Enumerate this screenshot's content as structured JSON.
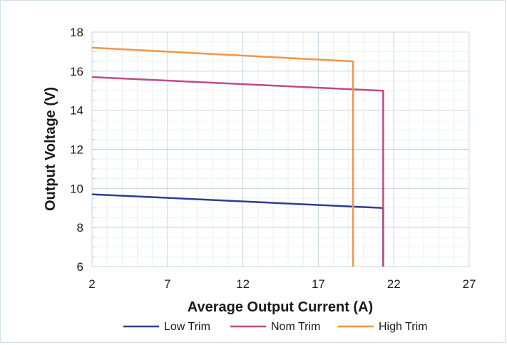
{
  "chart_data": {
    "type": "line",
    "title": "",
    "xlabel": "Average Output Current (A)",
    "ylabel": "Output Voltage (V)",
    "xlim": [
      2,
      27
    ],
    "ylim": [
      6,
      18
    ],
    "x_ticks": [
      "2",
      "7",
      "12",
      "17",
      "22",
      "27"
    ],
    "y_ticks": [
      "6",
      "8",
      "10",
      "12",
      "14",
      "16",
      "18"
    ],
    "grid": true,
    "legend_position": "bottom",
    "series": [
      {
        "name": "Low Trim",
        "color": "#2e3d8f",
        "x": [
          2,
          21.3,
          21.3
        ],
        "y": [
          9.7,
          9.0,
          6.0
        ]
      },
      {
        "name": "Nom Trim",
        "color": "#c04a86",
        "x": [
          2,
          21.3,
          21.3
        ],
        "y": [
          15.7,
          15.0,
          6.0
        ]
      },
      {
        "name": "High Trim",
        "color": "#f0964a",
        "x": [
          2,
          19.3,
          19.3
        ],
        "y": [
          17.2,
          16.5,
          6.0
        ]
      }
    ]
  }
}
